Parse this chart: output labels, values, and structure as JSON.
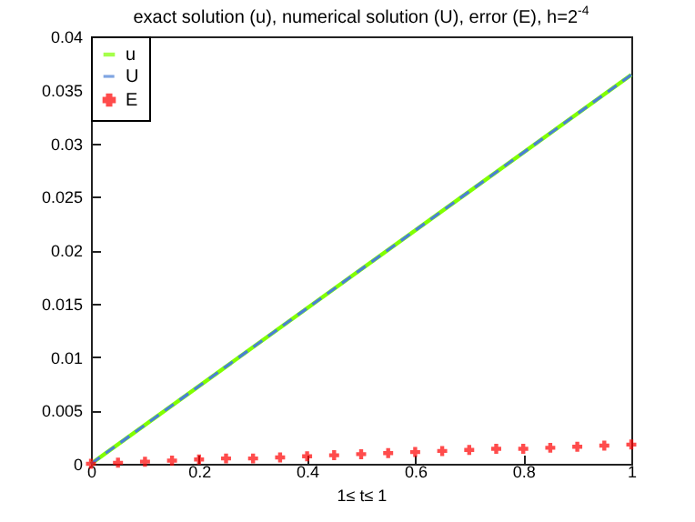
{
  "chart_data": {
    "type": "line",
    "title": "exact solution (u), numerical solution (U), error (E), h=2$^{-4}$",
    "xlabel": "1≤ t≤ 1",
    "xlim": [
      0,
      1
    ],
    "xticks": [
      0,
      0.2,
      0.4,
      0.6,
      0.8,
      1
    ],
    "ylim": [
      0,
      0.04
    ],
    "yticks": [
      0,
      0.005,
      0.01,
      0.015,
      0.02,
      0.025,
      0.03,
      0.035,
      0.04
    ],
    "grid": false,
    "legend": "top left",
    "series": [
      {
        "name": "u",
        "line_style": "solid",
        "marker": "none",
        "color": "#80ff00",
        "x": [
          0,
          1
        ],
        "values": [
          0,
          0.0364
        ]
      },
      {
        "name": "U",
        "line_style": "dashed",
        "marker": "none",
        "color": "#4a7fd6",
        "x": [
          0,
          1
        ],
        "values": [
          0,
          0.0364
        ]
      },
      {
        "name": "E",
        "type": "scatter",
        "marker": "cross",
        "color": "#ff0000",
        "x": [
          0,
          0.05,
          0.1,
          0.15,
          0.2,
          0.25,
          0.3,
          0.35,
          0.4,
          0.45,
          0.5,
          0.55,
          0.6,
          0.65,
          0.7,
          0.75,
          0.8,
          0.85,
          0.9,
          0.95,
          1
        ],
        "values": [
          0,
          0.0001,
          0.0002,
          0.0003,
          0.0004,
          0.0005,
          0.0005,
          0.0006,
          0.0007,
          0.0008,
          0.0009,
          0.001,
          0.0011,
          0.0012,
          0.0013,
          0.0014,
          0.0014,
          0.0015,
          0.0016,
          0.0017,
          0.0018
        ]
      }
    ]
  }
}
